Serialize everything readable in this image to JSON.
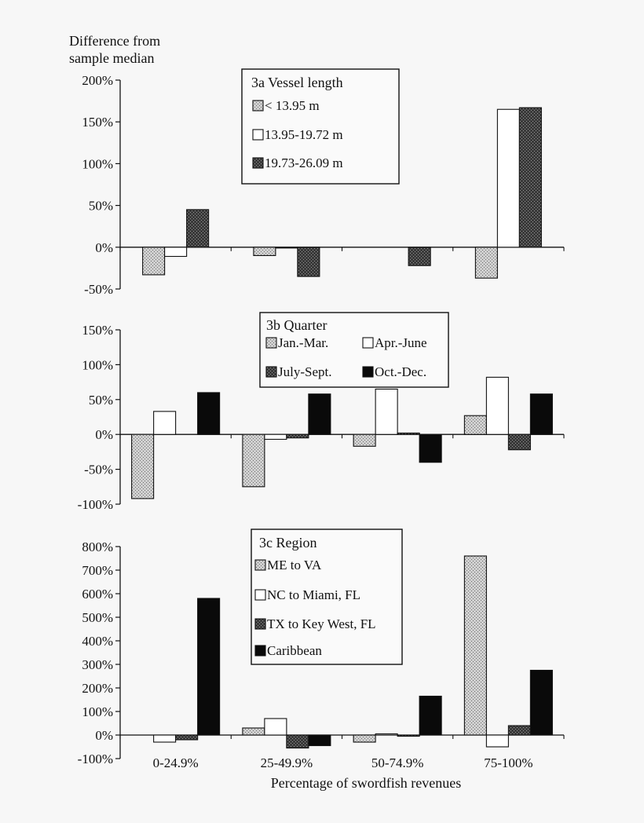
{
  "y_label": [
    "Difference from",
    "sample median"
  ],
  "x_label": "Percentage of swordfish revenues",
  "categories": [
    "0-24.9%",
    "25-49.9%",
    "50-74.9%",
    "75-100%"
  ],
  "colors": {
    "light_hatch": "#c4c4c4",
    "white": "#ffffff",
    "dark_hatch": "#4a4a4a",
    "black": "#0a0a0a"
  },
  "chart_data": [
    {
      "type": "bar",
      "title": "3a  Vessel length",
      "categories": [
        "0-24.9%",
        "25-49.9%",
        "50-74.9%",
        "75-100%"
      ],
      "ylim": [
        -50,
        200
      ],
      "yticks": [
        -50,
        0,
        50,
        100,
        150,
        200
      ],
      "ytick_labels": [
        "-50%",
        "0%",
        "50%",
        "100%",
        "150%",
        "200%"
      ],
      "legend": "top-center",
      "grid": false,
      "series": [
        {
          "name": "< 13.95 m",
          "style": "light_hatch",
          "values": [
            -33,
            -10,
            0,
            -37
          ]
        },
        {
          "name": "13.95-19.72 m",
          "style": "white",
          "values": [
            -11,
            -1,
            0,
            165
          ]
        },
        {
          "name": "19.73-26.09 m",
          "style": "dark_hatch",
          "values": [
            45,
            -35,
            -22,
            167
          ]
        }
      ]
    },
    {
      "type": "bar",
      "title": "3b  Quarter",
      "categories": [
        "0-24.9%",
        "25-49.9%",
        "50-74.9%",
        "75-100%"
      ],
      "ylim": [
        -100,
        150
      ],
      "yticks": [
        -100,
        -50,
        0,
        50,
        100,
        150
      ],
      "ytick_labels": [
        "-100%",
        "-50%",
        "0%",
        "50%",
        "100%",
        "150%"
      ],
      "legend": "top-center",
      "grid": false,
      "series": [
        {
          "name": "Jan.-Mar.",
          "style": "light_hatch",
          "values": [
            -92,
            -75,
            -17,
            27
          ]
        },
        {
          "name": "Apr.-June",
          "style": "white",
          "values": [
            33,
            -7,
            65,
            82
          ]
        },
        {
          "name": "July-Sept.",
          "style": "dark_hatch",
          "values": [
            0,
            -5,
            2,
            -22
          ]
        },
        {
          "name": "Oct.-Dec.",
          "style": "black",
          "values": [
            60,
            58,
            -40,
            58
          ]
        }
      ]
    },
    {
      "type": "bar",
      "title": "3c  Region",
      "categories": [
        "0-24.9%",
        "25-49.9%",
        "50-74.9%",
        "75-100%"
      ],
      "ylim": [
        -100,
        800
      ],
      "yticks": [
        -100,
        0,
        100,
        200,
        300,
        400,
        500,
        600,
        700,
        800
      ],
      "ytick_labels": [
        "-100%",
        "0%",
        "100%",
        "200%",
        "300%",
        "400%",
        "500%",
        "600%",
        "700%",
        "800%"
      ],
      "legend": "top-center",
      "grid": false,
      "series": [
        {
          "name": "ME to VA",
          "style": "light_hatch",
          "values": [
            0,
            30,
            -30,
            760
          ]
        },
        {
          "name": "NC to Miami, FL",
          "style": "white",
          "values": [
            -30,
            70,
            5,
            -50
          ]
        },
        {
          "name": "TX to Key West, FL",
          "style": "dark_hatch",
          "values": [
            -20,
            -55,
            -5,
            40
          ]
        },
        {
          "name": "Caribbean",
          "style": "black",
          "values": [
            580,
            -45,
            165,
            275
          ]
        }
      ]
    }
  ]
}
